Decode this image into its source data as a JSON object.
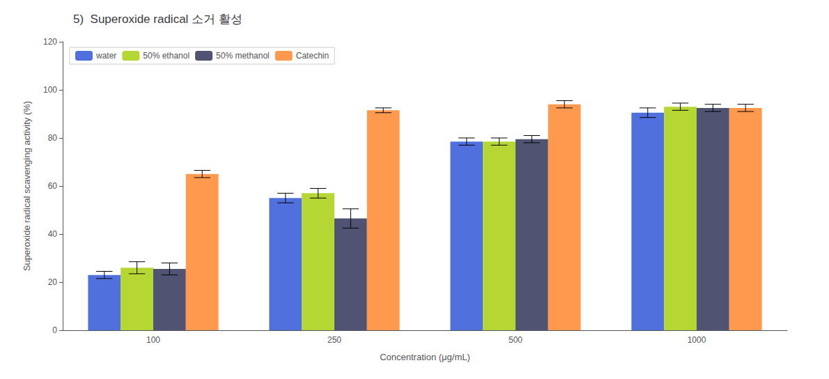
{
  "chart_data": {
    "type": "bar",
    "title": "5)  Superoxide radical 소거 활성",
    "xlabel": "Concentration (μg/mL)",
    "ylabel": "Superoxide radical scavenging activity (%)",
    "categories": [
      "100",
      "250",
      "500",
      "1000"
    ],
    "series": [
      {
        "name": "water",
        "values": [
          23.0,
          55.0,
          78.5,
          90.5
        ],
        "errors": [
          1.5,
          2.0,
          1.5,
          2.0
        ]
      },
      {
        "name": "50% ethanol",
        "values": [
          26.0,
          57.0,
          78.5,
          93.0
        ],
        "errors": [
          2.5,
          2.0,
          1.5,
          1.5
        ]
      },
      {
        "name": "50% methanol",
        "values": [
          25.5,
          46.5,
          79.5,
          92.5
        ],
        "errors": [
          2.5,
          4.0,
          1.5,
          1.5
        ]
      },
      {
        "name": "Catechin",
        "values": [
          65.0,
          91.5,
          94.0,
          92.5
        ],
        "errors": [
          1.5,
          1.0,
          1.5,
          1.5
        ]
      }
    ],
    "ylim": [
      0,
      120
    ],
    "yticks": [
      0,
      20,
      40,
      60,
      80,
      100,
      120
    ],
    "legend": "upper left",
    "grid": false
  }
}
